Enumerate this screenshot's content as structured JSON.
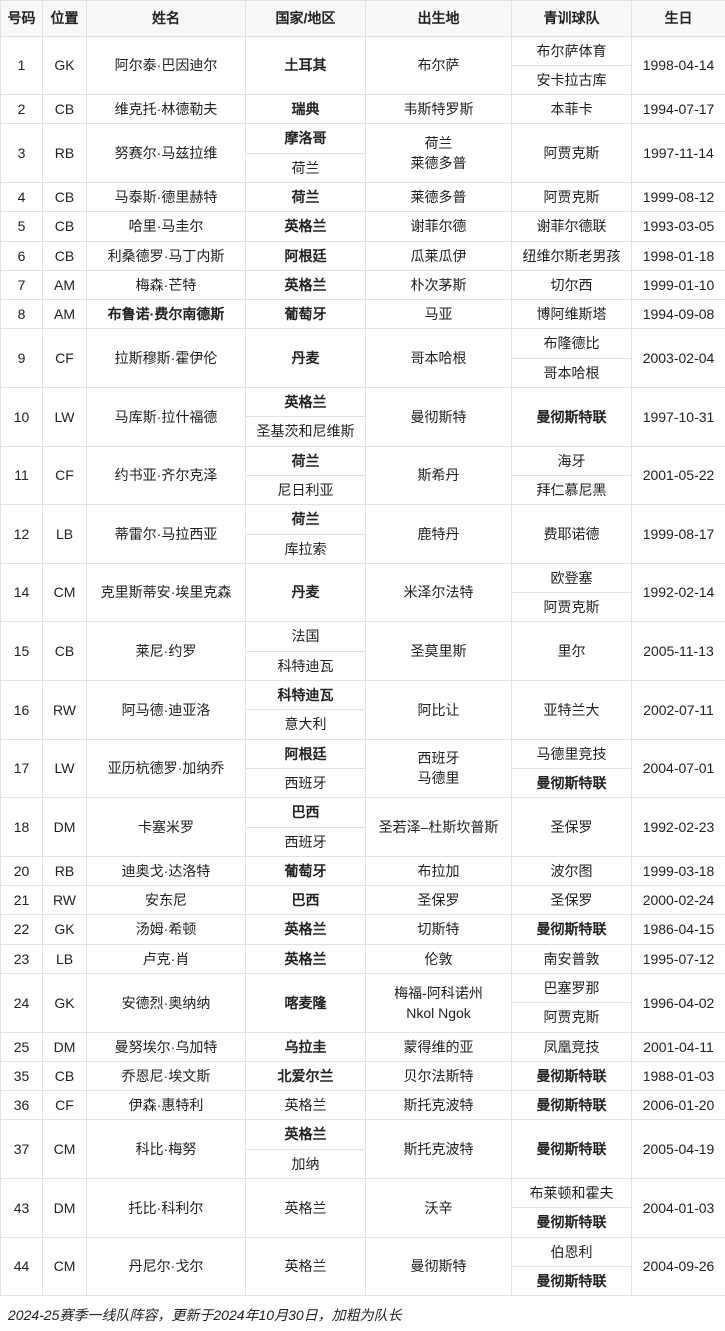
{
  "theme": {
    "header_bg": "#f8f8f8",
    "border_color": "#e2e2e2",
    "text_color": "#202122"
  },
  "table": {
    "headers": [
      "号码",
      "位置",
      "姓名",
      "国家/地区",
      "出生地",
      "青训球队",
      "生日"
    ],
    "players": [
      {
        "no": "1",
        "pos": "GK",
        "name": "阿尔泰·巴因迪尔",
        "name_bold": false,
        "countries": [
          {
            "text": "土耳其",
            "bold": true
          }
        ],
        "birthplace": [
          "布尔萨"
        ],
        "youth": [
          {
            "text": "布尔萨体育",
            "bold": false
          },
          {
            "text": "安卡拉古库",
            "bold": false
          }
        ],
        "birthday": "1998-04-14"
      },
      {
        "no": "2",
        "pos": "CB",
        "name": "维克托·林德勒夫",
        "name_bold": false,
        "countries": [
          {
            "text": "瑞典",
            "bold": true
          }
        ],
        "birthplace": [
          "韦斯特罗斯"
        ],
        "youth": [
          {
            "text": "本菲卡",
            "bold": false
          }
        ],
        "birthday": "1994-07-17"
      },
      {
        "no": "3",
        "pos": "RB",
        "name": "努赛尔·马兹拉维",
        "name_bold": false,
        "countries": [
          {
            "text": "摩洛哥",
            "bold": true
          },
          {
            "text": "荷兰",
            "bold": false
          }
        ],
        "birthplace": [
          "荷兰",
          "莱德多普"
        ],
        "youth": [
          {
            "text": "阿贾克斯",
            "bold": false
          }
        ],
        "birthday": "1997-11-14"
      },
      {
        "no": "4",
        "pos": "CB",
        "name": "马泰斯·德里赫特",
        "name_bold": false,
        "countries": [
          {
            "text": "荷兰",
            "bold": true
          }
        ],
        "birthplace": [
          "莱德多普"
        ],
        "youth": [
          {
            "text": "阿贾克斯",
            "bold": false
          }
        ],
        "birthday": "1999-08-12"
      },
      {
        "no": "5",
        "pos": "CB",
        "name": "哈里·马圭尔",
        "name_bold": false,
        "countries": [
          {
            "text": "英格兰",
            "bold": true
          }
        ],
        "birthplace": [
          "谢菲尔德"
        ],
        "youth": [
          {
            "text": "谢菲尔德联",
            "bold": false
          }
        ],
        "birthday": "1993-03-05"
      },
      {
        "no": "6",
        "pos": "CB",
        "name": "利桑德罗·马丁内斯",
        "name_bold": false,
        "countries": [
          {
            "text": "阿根廷",
            "bold": true
          }
        ],
        "birthplace": [
          "瓜莱瓜伊"
        ],
        "youth": [
          {
            "text": "纽维尔斯老男孩",
            "bold": false
          }
        ],
        "birthday": "1998-01-18"
      },
      {
        "no": "7",
        "pos": "AM",
        "name": "梅森·芒特",
        "name_bold": false,
        "countries": [
          {
            "text": "英格兰",
            "bold": true
          }
        ],
        "birthplace": [
          "朴次茅斯"
        ],
        "youth": [
          {
            "text": "切尔西",
            "bold": false
          }
        ],
        "birthday": "1999-01-10"
      },
      {
        "no": "8",
        "pos": "AM",
        "name": "布鲁诺·费尔南德斯",
        "name_bold": true,
        "countries": [
          {
            "text": "葡萄牙",
            "bold": true
          }
        ],
        "birthplace": [
          "马亚"
        ],
        "youth": [
          {
            "text": "博阿维斯塔",
            "bold": false
          }
        ],
        "birthday": "1994-09-08"
      },
      {
        "no": "9",
        "pos": "CF",
        "name": "拉斯穆斯·霍伊伦",
        "name_bold": false,
        "countries": [
          {
            "text": "丹麦",
            "bold": true
          }
        ],
        "birthplace": [
          "哥本哈根"
        ],
        "youth": [
          {
            "text": "布隆德比",
            "bold": false
          },
          {
            "text": "哥本哈根",
            "bold": false
          }
        ],
        "birthday": "2003-02-04"
      },
      {
        "no": "10",
        "pos": "LW",
        "name": "马库斯·拉什福德",
        "name_bold": false,
        "countries": [
          {
            "text": "英格兰",
            "bold": true
          },
          {
            "text": "圣基茨和尼维斯",
            "bold": false
          }
        ],
        "birthplace": [
          "曼彻斯特"
        ],
        "youth": [
          {
            "text": "曼彻斯特联",
            "bold": true
          }
        ],
        "birthday": "1997-10-31"
      },
      {
        "no": "11",
        "pos": "CF",
        "name": "约书亚·齐尔克泽",
        "name_bold": false,
        "countries": [
          {
            "text": "荷兰",
            "bold": true
          },
          {
            "text": "尼日利亚",
            "bold": false
          }
        ],
        "birthplace": [
          "斯希丹"
        ],
        "youth": [
          {
            "text": "海牙",
            "bold": false
          },
          {
            "text": "拜仁慕尼黑",
            "bold": false
          }
        ],
        "birthday": "2001-05-22"
      },
      {
        "no": "12",
        "pos": "LB",
        "name": "蒂雷尔·马拉西亚",
        "name_bold": false,
        "countries": [
          {
            "text": "荷兰",
            "bold": true
          },
          {
            "text": "库拉索",
            "bold": false
          }
        ],
        "birthplace": [
          "鹿特丹"
        ],
        "youth": [
          {
            "text": "费耶诺德",
            "bold": false
          }
        ],
        "birthday": "1999-08-17"
      },
      {
        "no": "14",
        "pos": "CM",
        "name": "克里斯蒂安·埃里克森",
        "name_bold": false,
        "countries": [
          {
            "text": "丹麦",
            "bold": true
          }
        ],
        "birthplace": [
          "米泽尔法特"
        ],
        "youth": [
          {
            "text": "欧登塞",
            "bold": false
          },
          {
            "text": "阿贾克斯",
            "bold": false
          }
        ],
        "birthday": "1992-02-14"
      },
      {
        "no": "15",
        "pos": "CB",
        "name": "莱尼·约罗",
        "name_bold": false,
        "countries": [
          {
            "text": "法国",
            "bold": false
          },
          {
            "text": "科特迪瓦",
            "bold": false
          }
        ],
        "birthplace": [
          "圣莫里斯"
        ],
        "youth": [
          {
            "text": "里尔",
            "bold": false
          }
        ],
        "birthday": "2005-11-13"
      },
      {
        "no": "16",
        "pos": "RW",
        "name": "阿马德·迪亚洛",
        "name_bold": false,
        "countries": [
          {
            "text": "科特迪瓦",
            "bold": true
          },
          {
            "text": "意大利",
            "bold": false
          }
        ],
        "birthplace": [
          "阿比让"
        ],
        "youth": [
          {
            "text": "亚特兰大",
            "bold": false
          }
        ],
        "birthday": "2002-07-11"
      },
      {
        "no": "17",
        "pos": "LW",
        "name": "亚历杭德罗·加纳乔",
        "name_bold": false,
        "countries": [
          {
            "text": "阿根廷",
            "bold": true
          },
          {
            "text": "西班牙",
            "bold": false
          }
        ],
        "birthplace": [
          "西班牙",
          "马德里"
        ],
        "youth": [
          {
            "text": "马德里竞技",
            "bold": false
          },
          {
            "text": "曼彻斯特联",
            "bold": true
          }
        ],
        "birthday": "2004-07-01"
      },
      {
        "no": "18",
        "pos": "DM",
        "name": "卡塞米罗",
        "name_bold": false,
        "countries": [
          {
            "text": "巴西",
            "bold": true
          },
          {
            "text": "西班牙",
            "bold": false
          }
        ],
        "birthplace": [
          "圣若泽–杜斯坎普斯"
        ],
        "youth": [
          {
            "text": "圣保罗",
            "bold": false
          }
        ],
        "birthday": "1992-02-23"
      },
      {
        "no": "20",
        "pos": "RB",
        "name": "迪奥戈·达洛特",
        "name_bold": false,
        "countries": [
          {
            "text": "葡萄牙",
            "bold": true
          }
        ],
        "birthplace": [
          "布拉加"
        ],
        "youth": [
          {
            "text": "波尔图",
            "bold": false
          }
        ],
        "birthday": "1999-03-18"
      },
      {
        "no": "21",
        "pos": "RW",
        "name": "安东尼",
        "name_bold": false,
        "countries": [
          {
            "text": "巴西",
            "bold": true
          }
        ],
        "birthplace": [
          "圣保罗"
        ],
        "youth": [
          {
            "text": "圣保罗",
            "bold": false
          }
        ],
        "birthday": "2000-02-24"
      },
      {
        "no": "22",
        "pos": "GK",
        "name": "汤姆·希顿",
        "name_bold": false,
        "countries": [
          {
            "text": "英格兰",
            "bold": true
          }
        ],
        "birthplace": [
          "切斯特"
        ],
        "youth": [
          {
            "text": "曼彻斯特联",
            "bold": true
          }
        ],
        "birthday": "1986-04-15"
      },
      {
        "no": "23",
        "pos": "LB",
        "name": "卢克·肖",
        "name_bold": false,
        "countries": [
          {
            "text": "英格兰",
            "bold": true
          }
        ],
        "birthplace": [
          "伦敦"
        ],
        "youth": [
          {
            "text": "南安普敦",
            "bold": false
          }
        ],
        "birthday": "1995-07-12"
      },
      {
        "no": "24",
        "pos": "GK",
        "name": "安德烈·奥纳纳",
        "name_bold": false,
        "countries": [
          {
            "text": "喀麦隆",
            "bold": true
          }
        ],
        "birthplace": [
          "梅福-阿科诺州",
          "Nkol Ngok"
        ],
        "youth": [
          {
            "text": "巴塞罗那",
            "bold": false
          },
          {
            "text": "阿贾克斯",
            "bold": false
          }
        ],
        "birthday": "1996-04-02"
      },
      {
        "no": "25",
        "pos": "DM",
        "name": "曼努埃尔·乌加特",
        "name_bold": false,
        "countries": [
          {
            "text": "乌拉圭",
            "bold": true
          }
        ],
        "birthplace": [
          "蒙得维的亚"
        ],
        "youth": [
          {
            "text": "凤凰竞技",
            "bold": false
          }
        ],
        "birthday": "2001-04-11"
      },
      {
        "no": "35",
        "pos": "CB",
        "name": "乔恩尼·埃文斯",
        "name_bold": false,
        "countries": [
          {
            "text": "北爱尔兰",
            "bold": true
          }
        ],
        "birthplace": [
          "贝尔法斯特"
        ],
        "youth": [
          {
            "text": "曼彻斯特联",
            "bold": true
          }
        ],
        "birthday": "1988-01-03"
      },
      {
        "no": "36",
        "pos": "CF",
        "name": "伊森·惠特利",
        "name_bold": false,
        "countries": [
          {
            "text": "英格兰",
            "bold": false
          }
        ],
        "birthplace": [
          "斯托克波特"
        ],
        "youth": [
          {
            "text": "曼彻斯特联",
            "bold": true
          }
        ],
        "birthday": "2006-01-20"
      },
      {
        "no": "37",
        "pos": "CM",
        "name": "科比·梅努",
        "name_bold": false,
        "countries": [
          {
            "text": "英格兰",
            "bold": true
          },
          {
            "text": "加纳",
            "bold": false
          }
        ],
        "birthplace": [
          "斯托克波特"
        ],
        "youth": [
          {
            "text": "曼彻斯特联",
            "bold": true
          }
        ],
        "birthday": "2005-04-19"
      },
      {
        "no": "43",
        "pos": "DM",
        "name": "托比·科利尔",
        "name_bold": false,
        "countries": [
          {
            "text": "英格兰",
            "bold": false
          }
        ],
        "birthplace": [
          "沃辛"
        ],
        "youth": [
          {
            "text": "布莱顿和霍夫",
            "bold": false
          },
          {
            "text": "曼彻斯特联",
            "bold": true
          }
        ],
        "birthday": "2004-01-03"
      },
      {
        "no": "44",
        "pos": "CM",
        "name": "丹尼尔·戈尔",
        "name_bold": false,
        "countries": [
          {
            "text": "英格兰",
            "bold": false
          }
        ],
        "birthplace": [
          "曼彻斯特"
        ],
        "youth": [
          {
            "text": "伯恩利",
            "bold": false
          },
          {
            "text": "曼彻斯特联",
            "bold": true
          }
        ],
        "birthday": "2004-09-26"
      }
    ]
  },
  "footer": {
    "note": "2024-25赛季一线队阵容，更新于2024年10月30日，加粗为队长"
  }
}
